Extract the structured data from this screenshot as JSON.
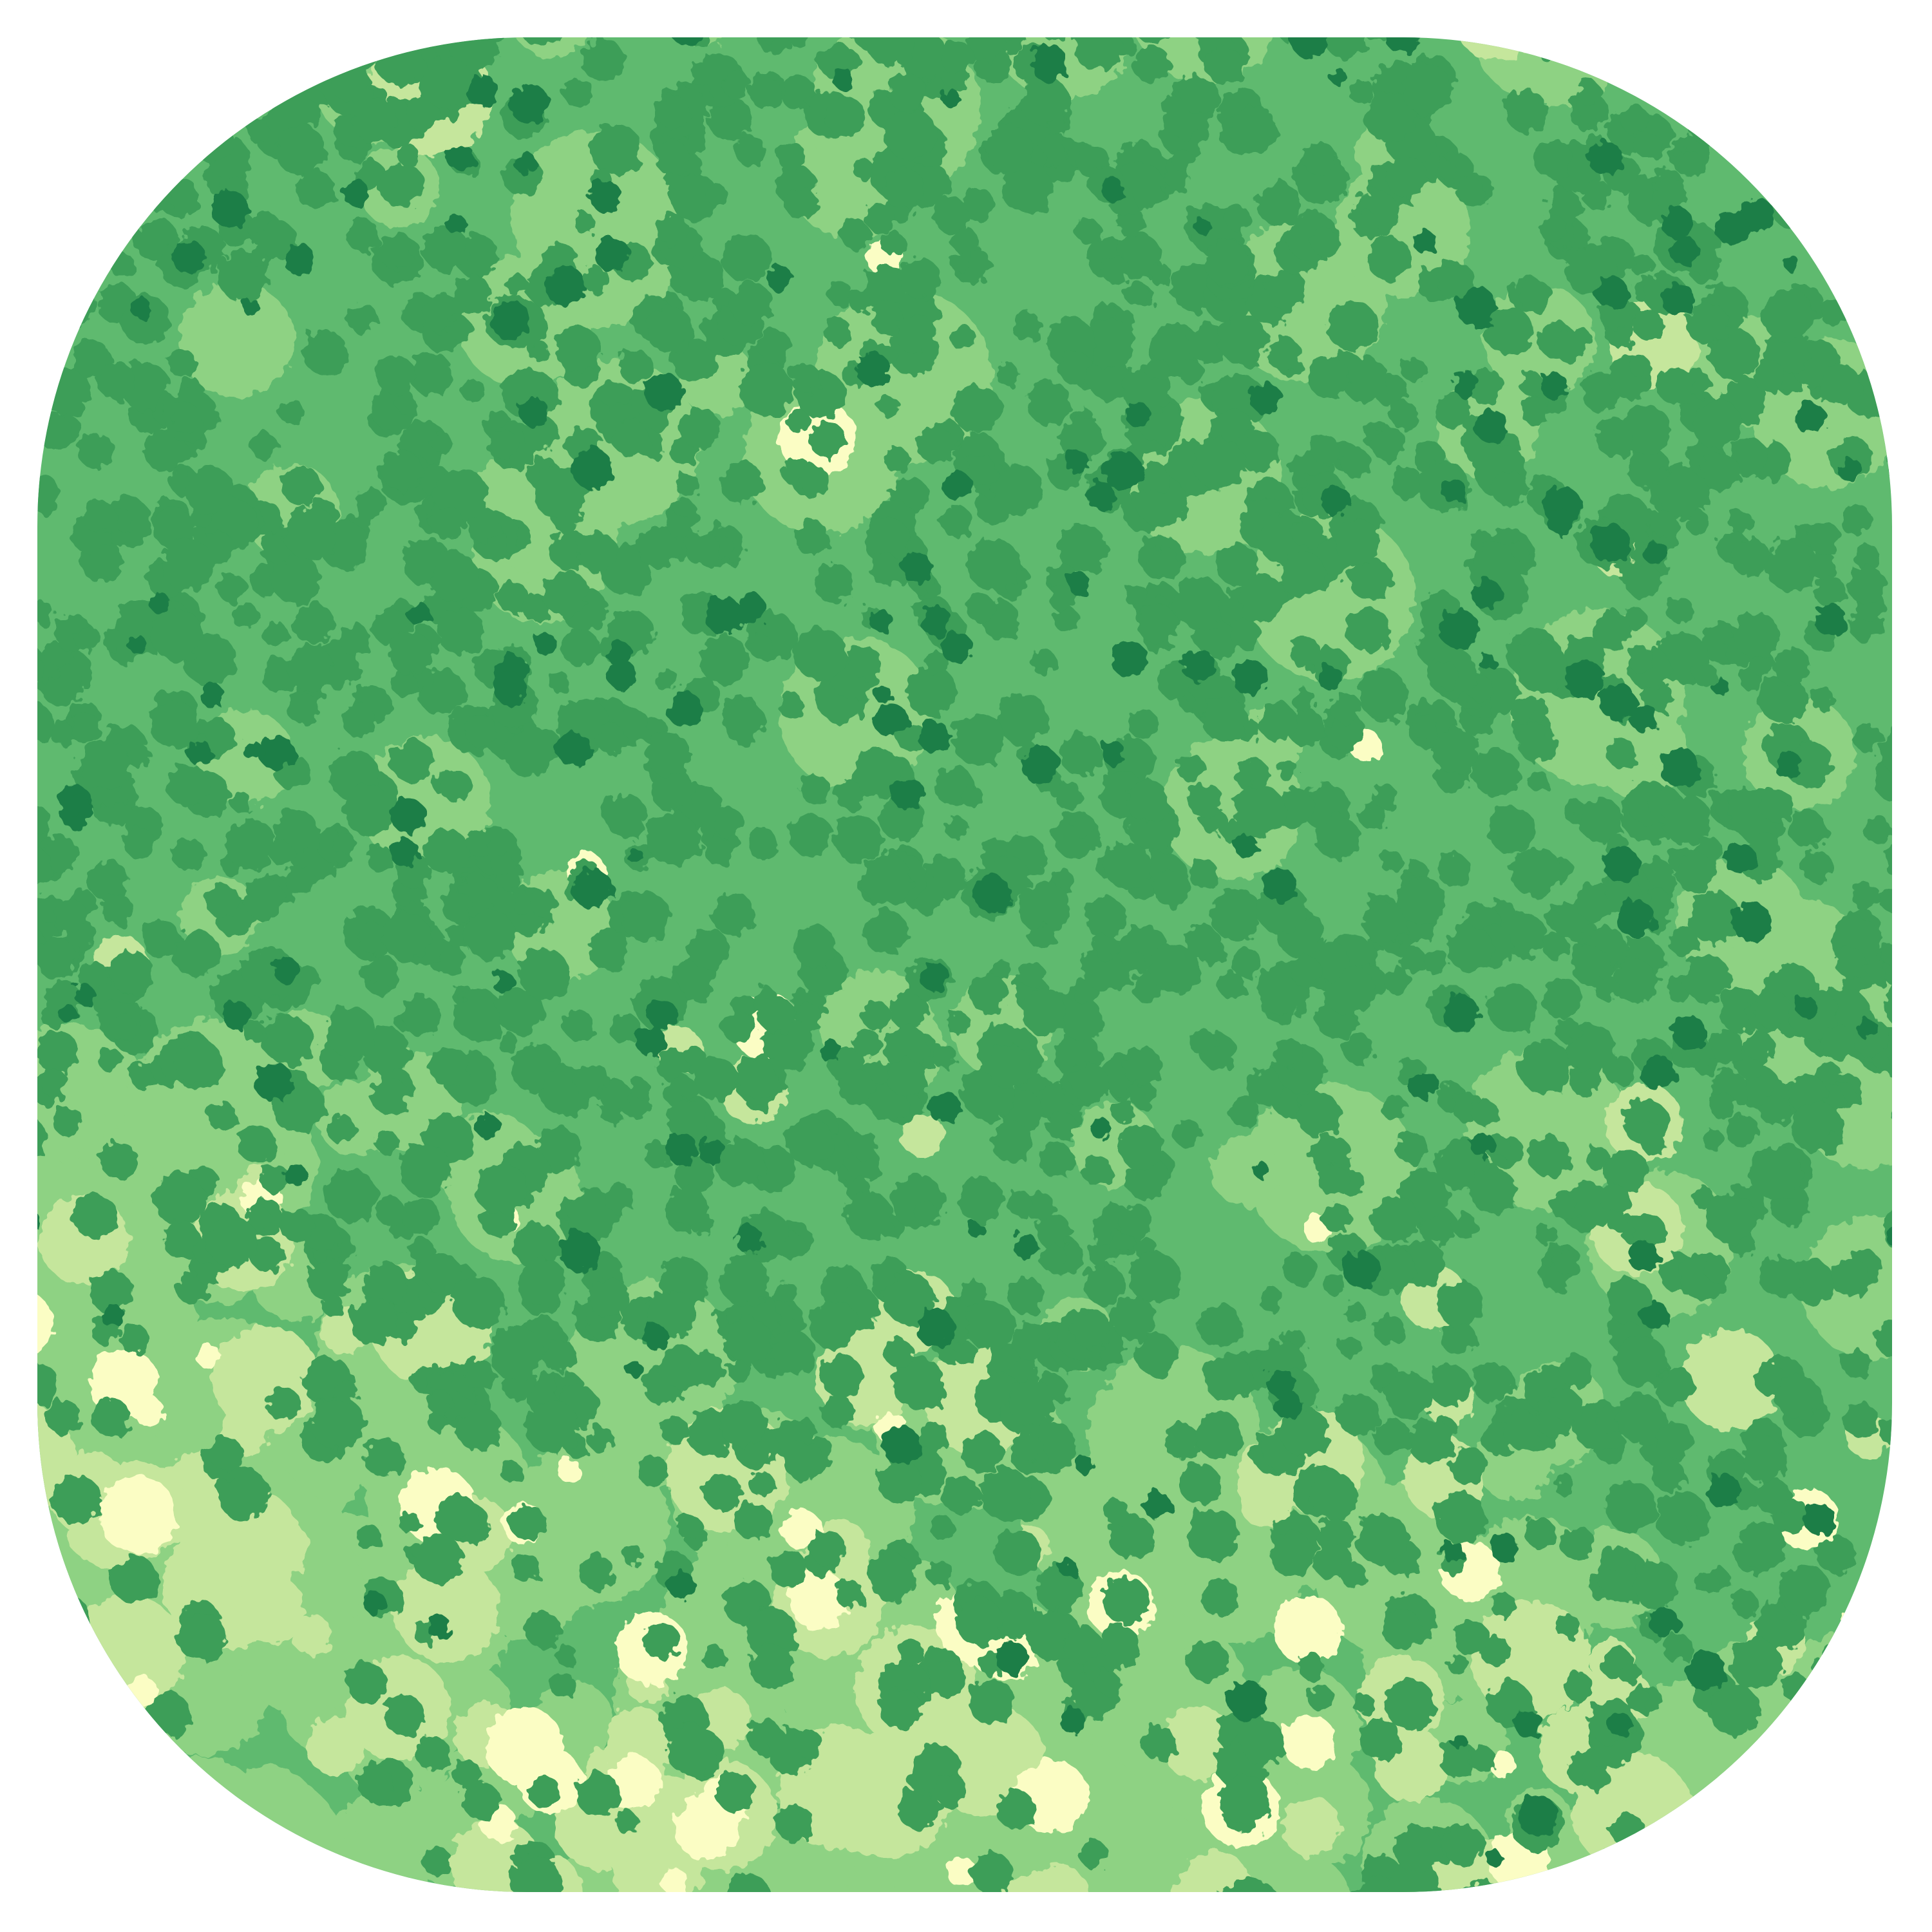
{
  "map": {
    "palette": [
      "#fbfdc4",
      "#c5e69c",
      "#8ed283",
      "#5fba6f",
      "#3c9e58",
      "#1f7e46"
    ]
  }
}
